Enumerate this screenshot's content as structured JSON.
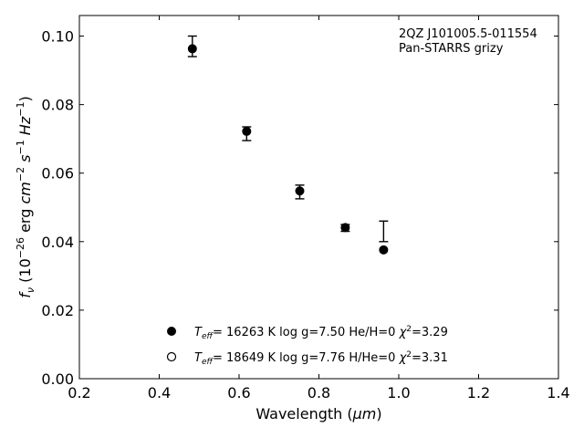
{
  "chart_data": {
    "type": "scatter",
    "xlabel_prefix": "Wavelength (",
    "xlabel_unit": "μm",
    "xlabel_suffix": ")",
    "ylabel_f": "f",
    "ylabel_nu": "ν",
    "ylabel_rest_1": " (10",
    "ylabel_exp1": "−26",
    "ylabel_rest_2": " erg ",
    "ylabel_cm": "cm",
    "ylabel_exp2": "−2",
    "ylabel_s": " s",
    "ylabel_exp3": "−1",
    "ylabel_hz": " Hz",
    "ylabel_exp4": "−1",
    "ylabel_close": ")",
    "xlim": [
      0.2,
      1.4
    ],
    "ylim": [
      0.0,
      0.106
    ],
    "x_ticks": [
      0.2,
      0.4,
      0.6,
      0.8,
      1.0,
      1.2,
      1.4
    ],
    "x_tick_labels": [
      "0.2",
      "0.4",
      "0.6",
      "0.8",
      "1.0",
      "1.2",
      "1.4"
    ],
    "y_ticks": [
      0.0,
      0.02,
      0.04,
      0.06,
      0.08,
      0.1
    ],
    "y_tick_labels": [
      "0.00",
      "0.02",
      "0.04",
      "0.06",
      "0.08",
      "0.10"
    ],
    "annotation_lines": [
      "2QZ J101005.5-011554",
      "Pan-STARRS grizy"
    ],
    "observed": [
      {
        "x": 0.483,
        "y": 0.097,
        "ylo": 0.094,
        "yhi": 0.1
      },
      {
        "x": 0.619,
        "y": 0.0715,
        "ylo": 0.0695,
        "yhi": 0.0735
      },
      {
        "x": 0.752,
        "y": 0.0545,
        "ylo": 0.0525,
        "yhi": 0.0565
      },
      {
        "x": 0.866,
        "y": 0.044,
        "ylo": 0.043,
        "yhi": 0.045
      },
      {
        "x": 0.962,
        "y": 0.043,
        "ylo": 0.04,
        "yhi": 0.046
      }
    ],
    "model_filled": [
      {
        "x": 0.483,
        "y": 0.0963
      },
      {
        "x": 0.619,
        "y": 0.0722
      },
      {
        "x": 0.752,
        "y": 0.0548
      },
      {
        "x": 0.866,
        "y": 0.0441
      },
      {
        "x": 0.962,
        "y": 0.0376
      }
    ],
    "legend": [
      {
        "marker": "filled",
        "T": "T",
        "T_sub": "eff",
        "text": "= 16263 K  log g=7.50  He/H=0  ",
        "chi": "χ",
        "chi_sup": "2",
        "chi_val": "=3.29"
      },
      {
        "marker": "open",
        "T": "T",
        "T_sub": "eff",
        "text": "= 18649 K  log g=7.76  H/He=0  ",
        "chi": "χ",
        "chi_sup": "2",
        "chi_val": "=3.31"
      }
    ]
  }
}
